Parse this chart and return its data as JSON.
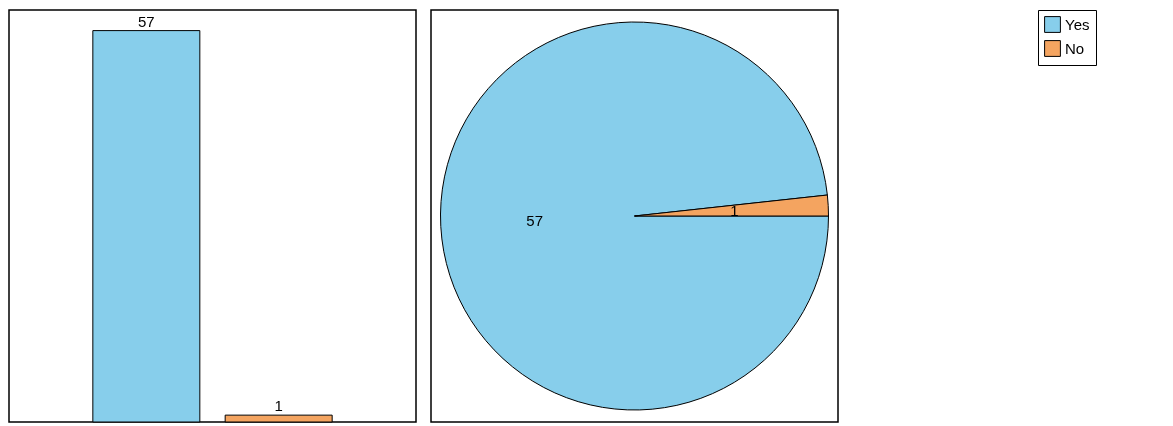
{
  "chart_data": [
    {
      "type": "bar",
      "categories": [
        null,
        null
      ],
      "values": [
        57,
        1
      ],
      "colors": [
        "#87ceeb",
        "#f4a460"
      ],
      "data_labels": true
    },
    {
      "type": "pie",
      "categories": [
        "Yes",
        "No"
      ],
      "values": [
        57,
        1
      ],
      "colors": [
        "#87ceeb",
        "#f4a460"
      ],
      "data_labels": true,
      "legend": "right"
    }
  ]
}
